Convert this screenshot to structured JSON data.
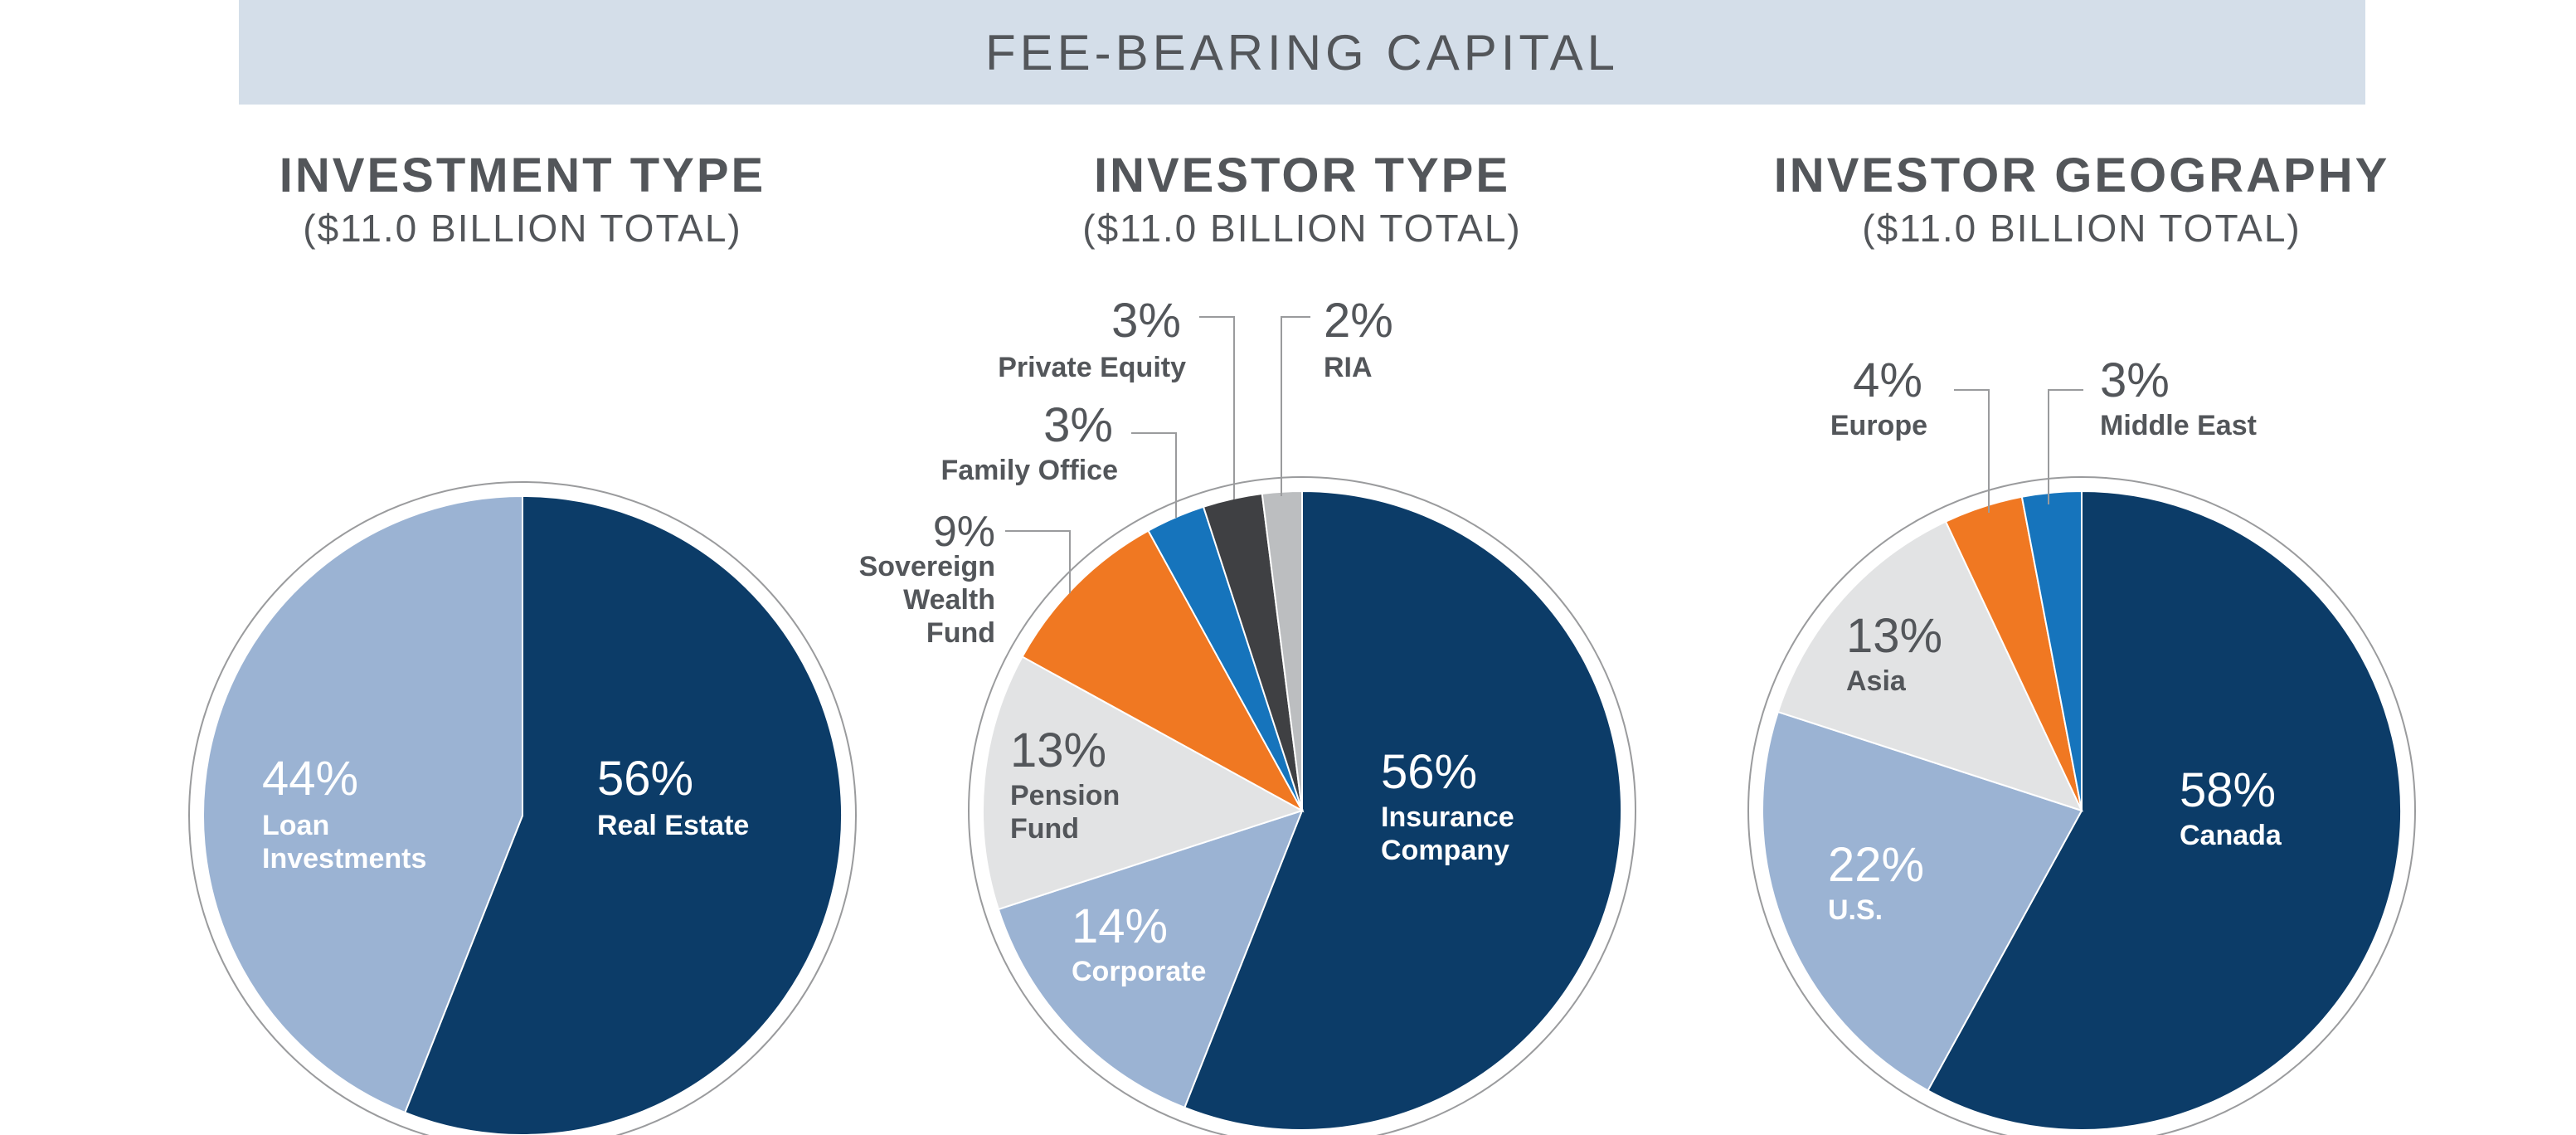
{
  "header": {
    "title": "FEE-BEARING CAPITAL"
  },
  "colors": {
    "dark_navy": "#0c3c68",
    "light_blue": "#9bb3d3",
    "light_gray": "#e2e3e4",
    "orange": "#f07822",
    "blue": "#1674bc",
    "charcoal": "#3f4043",
    "silver": "#bcbec0",
    "text_gray": "#53565a",
    "banner": "#d4dee9"
  },
  "chart_data": [
    {
      "type": "pie",
      "title": "INVESTMENT TYPE",
      "subtitle": "($11.0 BILLION TOTAL)",
      "slices": [
        {
          "label": "Real Estate",
          "value": 56,
          "value_label": "56%",
          "color": "#0c3c68"
        },
        {
          "label": "Loan Investments",
          "value": 44,
          "value_label": "44%",
          "color": "#9bb3d3"
        }
      ]
    },
    {
      "type": "pie",
      "title": "INVESTOR TYPE",
      "subtitle": "($11.0 BILLION TOTAL)",
      "slices": [
        {
          "label": "Insurance Company",
          "value": 56,
          "value_label": "56%",
          "color": "#0c3c68"
        },
        {
          "label": "Corporate",
          "value": 14,
          "value_label": "14%",
          "color": "#9bb3d3"
        },
        {
          "label": "Pension Fund",
          "value": 13,
          "value_label": "13%",
          "color": "#e2e3e4"
        },
        {
          "label": "Sovereign Wealth Fund",
          "value": 9,
          "value_label": "9%",
          "color": "#f07822"
        },
        {
          "label": "Family Office",
          "value": 3,
          "value_label": "3%",
          "color": "#1674bc"
        },
        {
          "label": "Private Equity",
          "value": 3,
          "value_label": "3%",
          "color": "#3f4043"
        },
        {
          "label": "RIA",
          "value": 2,
          "value_label": "2%",
          "color": "#bcbec0"
        }
      ]
    },
    {
      "type": "pie",
      "title": "INVESTOR GEOGRAPHY",
      "subtitle": "($11.0 BILLION TOTAL)",
      "slices": [
        {
          "label": "Canada",
          "value": 58,
          "value_label": "58%",
          "color": "#0c3c68"
        },
        {
          "label": "U.S.",
          "value": 22,
          "value_label": "22%",
          "color": "#9bb3d3"
        },
        {
          "label": "Asia",
          "value": 13,
          "value_label": "13%",
          "color": "#e2e3e4"
        },
        {
          "label": "Europe",
          "value": 4,
          "value_label": "4%",
          "color": "#f07822"
        },
        {
          "label": "Middle East",
          "value": 3,
          "value_label": "3%",
          "color": "#1674bc"
        }
      ]
    }
  ]
}
